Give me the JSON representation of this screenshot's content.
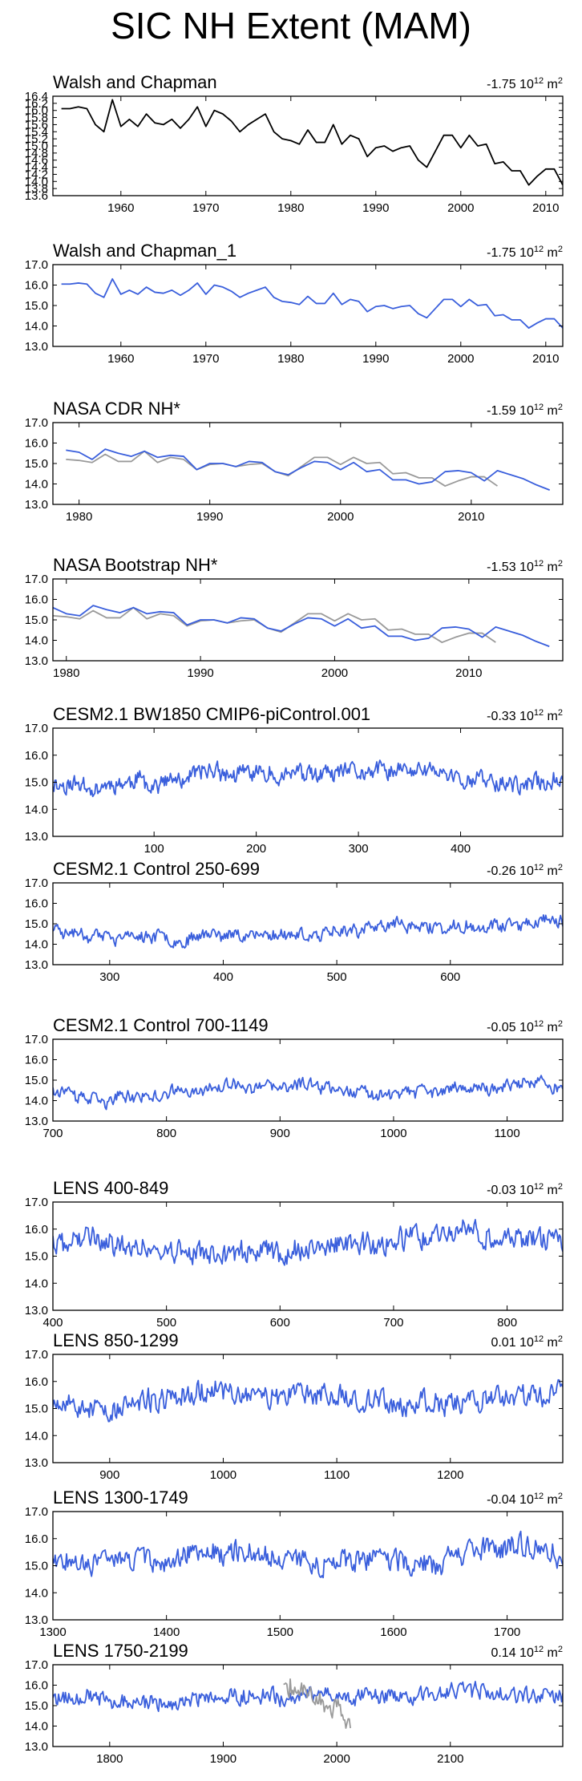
{
  "figure": {
    "title": "SIC NH Extent (MAM)",
    "trend_unit": "10",
    "trend_unit_exp1": "12",
    "trend_unit_exp2": "2",
    "trend_unit_m": "m",
    "colors": {
      "model": "#3a5fdc",
      "obs": "#9a9a9a",
      "frame": "#000000",
      "walsh": "#000000"
    }
  },
  "chart_data": [
    {
      "type": "line",
      "title": "Walsh and Chapman",
      "trend": "-1.75",
      "xlim": [
        1952,
        2012
      ],
      "ylim": [
        13.6,
        16.4
      ],
      "yticks": [
        13.6,
        13.8,
        14.0,
        14.2,
        14.4,
        14.6,
        14.8,
        15.0,
        15.2,
        15.4,
        15.6,
        15.8,
        16.0,
        16.2,
        16.4
      ],
      "ytick_labels": [
        "13.6",
        "13.8",
        "14.0",
        "14.2",
        "14.4",
        "14.6",
        "14.8",
        "15.0",
        "15.2",
        "15.4",
        "15.6",
        "15.8",
        "16.0",
        "16.2",
        "16.4"
      ],
      "xticks": [
        1960,
        1970,
        1980,
        1990,
        2000,
        2010
      ],
      "series": [
        {
          "name": "Walsh and Chapman",
          "style": "walsh",
          "x_start": 1953,
          "x_step": 1,
          "values": [
            16.05,
            16.05,
            16.1,
            16.05,
            15.6,
            15.4,
            16.3,
            15.55,
            15.75,
            15.55,
            15.9,
            15.65,
            15.6,
            15.75,
            15.5,
            15.75,
            16.1,
            15.55,
            16.0,
            15.9,
            15.7,
            15.4,
            15.6,
            15.75,
            15.9,
            15.4,
            15.2,
            15.15,
            15.05,
            15.45,
            15.1,
            15.1,
            15.6,
            15.05,
            15.3,
            15.2,
            14.7,
            14.95,
            15.0,
            14.85,
            14.95,
            15.0,
            14.6,
            14.4,
            14.85,
            15.3,
            15.3,
            14.95,
            15.3,
            15.0,
            15.05,
            14.5,
            14.55,
            14.3,
            14.3,
            13.9,
            14.15,
            14.35,
            14.35,
            13.9
          ]
        }
      ]
    },
    {
      "type": "line",
      "title": "Walsh and Chapman_1",
      "trend": "-1.75",
      "xlim": [
        1952,
        2012
      ],
      "ylim": [
        13.0,
        17.0
      ],
      "yticks": [
        13,
        14,
        15,
        16,
        17
      ],
      "ytick_labels": [
        "13.0",
        "14.0",
        "15.0",
        "16.0",
        "17.0"
      ],
      "xticks": [
        1960,
        1970,
        1980,
        1990,
        2000,
        2010
      ],
      "series": [
        {
          "name": "Walsh and Chapman_1",
          "style": "model",
          "x_start": 1953,
          "x_step": 1,
          "values": [
            16.05,
            16.05,
            16.1,
            16.05,
            15.6,
            15.4,
            16.3,
            15.55,
            15.75,
            15.55,
            15.9,
            15.65,
            15.6,
            15.75,
            15.5,
            15.75,
            16.1,
            15.55,
            16.0,
            15.9,
            15.7,
            15.4,
            15.6,
            15.75,
            15.9,
            15.4,
            15.2,
            15.15,
            15.05,
            15.45,
            15.1,
            15.1,
            15.6,
            15.05,
            15.3,
            15.2,
            14.7,
            14.95,
            15.0,
            14.85,
            14.95,
            15.0,
            14.6,
            14.4,
            14.85,
            15.3,
            15.3,
            14.95,
            15.3,
            15.0,
            15.05,
            14.5,
            14.55,
            14.3,
            14.3,
            13.9,
            14.15,
            14.35,
            14.35,
            13.9
          ]
        }
      ]
    },
    {
      "type": "line",
      "title": "NASA CDR NH*",
      "trend": "-1.59",
      "xlim": [
        1978,
        2017
      ],
      "ylim": [
        13.0,
        17.0
      ],
      "yticks": [
        13,
        14,
        15,
        16,
        17
      ],
      "ytick_labels": [
        "13.0",
        "14.0",
        "15.0",
        "16.0",
        "17.0"
      ],
      "xticks": [
        1980,
        1990,
        2000,
        2010
      ],
      "series": [
        {
          "name": "Walsh and Chapman",
          "style": "obs",
          "x_start": 1979,
          "x_step": 1,
          "values": [
            15.2,
            15.15,
            15.05,
            15.45,
            15.1,
            15.1,
            15.6,
            15.05,
            15.3,
            15.2,
            14.7,
            14.95,
            15.0,
            14.85,
            14.95,
            15.0,
            14.6,
            14.4,
            14.85,
            15.3,
            15.3,
            14.95,
            15.3,
            15.0,
            15.05,
            14.5,
            14.55,
            14.3,
            14.3,
            13.9,
            14.15,
            14.35,
            14.35,
            13.9
          ]
        },
        {
          "name": "NASA CDR NH",
          "style": "model",
          "x_start": 1979,
          "x_step": 1,
          "values": [
            15.65,
            15.55,
            15.2,
            15.7,
            15.5,
            15.35,
            15.6,
            15.3,
            15.4,
            15.35,
            14.7,
            15.0,
            15.0,
            14.85,
            15.1,
            15.05,
            14.6,
            14.45,
            14.8,
            15.1,
            15.05,
            14.7,
            15.05,
            14.6,
            14.7,
            14.2,
            14.2,
            14.0,
            14.1,
            14.6,
            14.65,
            14.55,
            14.15,
            14.65,
            14.45,
            14.25,
            13.95,
            13.7
          ]
        }
      ]
    },
    {
      "type": "line",
      "title": "NASA Bootstrap NH*",
      "trend": "-1.53",
      "xlim": [
        1979,
        2017
      ],
      "ylim": [
        13.0,
        17.0
      ],
      "yticks": [
        13,
        14,
        15,
        16,
        17
      ],
      "ytick_labels": [
        "13.0",
        "14.0",
        "15.0",
        "16.0",
        "17.0"
      ],
      "xticks": [
        1980,
        1990,
        2000,
        2010
      ],
      "series": [
        {
          "name": "Walsh and Chapman",
          "style": "obs",
          "x_start": 1979,
          "x_step": 1,
          "values": [
            15.2,
            15.15,
            15.05,
            15.45,
            15.1,
            15.1,
            15.6,
            15.05,
            15.3,
            15.2,
            14.7,
            14.95,
            15.0,
            14.85,
            14.95,
            15.0,
            14.6,
            14.4,
            14.85,
            15.3,
            15.3,
            14.95,
            15.3,
            15.0,
            15.05,
            14.5,
            14.55,
            14.3,
            14.3,
            13.9,
            14.15,
            14.35,
            14.35,
            13.9
          ]
        },
        {
          "name": "NASA Bootstrap NH",
          "style": "model",
          "x_start": 1979,
          "x_step": 1,
          "values": [
            15.6,
            15.3,
            15.2,
            15.7,
            15.5,
            15.35,
            15.6,
            15.3,
            15.4,
            15.35,
            14.75,
            15.0,
            15.0,
            14.85,
            15.1,
            15.05,
            14.6,
            14.45,
            14.8,
            15.1,
            15.05,
            14.7,
            15.05,
            14.6,
            14.7,
            14.2,
            14.2,
            14.0,
            14.1,
            14.6,
            14.65,
            14.55,
            14.15,
            14.65,
            14.45,
            14.25,
            13.95,
            13.7
          ]
        }
      ]
    },
    {
      "type": "line",
      "title": "CESM2.1 BW1850 CMIP6-piControl.001",
      "trend": "-0.33",
      "xlim": [
        1,
        500
      ],
      "ylim": [
        13.0,
        17.0
      ],
      "yticks": [
        13,
        14,
        15,
        16,
        17
      ],
      "ytick_labels": [
        "13.0",
        "14.0",
        "15.0",
        "16.0",
        "17.0"
      ],
      "xticks": [
        100,
        200,
        300,
        400
      ],
      "series": [
        {
          "name": "CESM2.1 BW1850",
          "style": "model",
          "generated": true,
          "n": 500,
          "mean": 15.0,
          "amp": 0.28,
          "seed": 11
        }
      ]
    },
    {
      "type": "line",
      "title": "CESM2.1 Control 250-699",
      "trend": "-0.26",
      "xlim": [
        250,
        699
      ],
      "ylim": [
        13.0,
        17.0
      ],
      "yticks": [
        13,
        14,
        15,
        16,
        17
      ],
      "ytick_labels": [
        "13.0",
        "14.0",
        "15.0",
        "16.0",
        "17.0"
      ],
      "xticks": [
        300,
        400,
        500,
        600
      ],
      "series": [
        {
          "name": "CESM2.1 Control",
          "style": "model",
          "generated": true,
          "n": 450,
          "mean": 14.75,
          "amp": 0.27,
          "seed": 23
        }
      ]
    },
    {
      "type": "line",
      "title": "CESM2.1 Control 700-1149",
      "trend": "-0.05",
      "xlim": [
        700,
        1149
      ],
      "ylim": [
        13.0,
        17.0
      ],
      "yticks": [
        13,
        14,
        15,
        16,
        17
      ],
      "ytick_labels": [
        "13.0",
        "14.0",
        "15.0",
        "16.0",
        "17.0"
      ],
      "xticks": [
        700,
        800,
        900,
        1000,
        1100
      ],
      "series": [
        {
          "name": "CESM2.1 Control",
          "style": "model",
          "generated": true,
          "n": 450,
          "mean": 14.6,
          "amp": 0.27,
          "seed": 37
        }
      ]
    },
    {
      "type": "line",
      "title": "LENS 400-849",
      "trend": "-0.03",
      "xlim": [
        400,
        849
      ],
      "ylim": [
        13.0,
        17.0
      ],
      "yticks": [
        13,
        14,
        15,
        16,
        17
      ],
      "ytick_labels": [
        "13.0",
        "14.0",
        "15.0",
        "16.0",
        "17.0"
      ],
      "xticks": [
        400,
        500,
        600,
        700,
        800
      ],
      "series": [
        {
          "name": "LENS",
          "style": "model",
          "generated": true,
          "n": 450,
          "mean": 15.4,
          "amp": 0.38,
          "seed": 41
        }
      ]
    },
    {
      "type": "line",
      "title": "LENS 850-1299",
      "trend": "0.01",
      "xlim": [
        850,
        1299
      ],
      "ylim": [
        13.0,
        17.0
      ],
      "yticks": [
        13,
        14,
        15,
        16,
        17
      ],
      "ytick_labels": [
        "13.0",
        "14.0",
        "15.0",
        "16.0",
        "17.0"
      ],
      "xticks": [
        900,
        1000,
        1100,
        1200
      ],
      "series": [
        {
          "name": "LENS",
          "style": "model",
          "generated": true,
          "n": 450,
          "mean": 15.4,
          "amp": 0.38,
          "seed": 53
        }
      ]
    },
    {
      "type": "line",
      "title": "LENS 1300-1749",
      "trend": "-0.04",
      "xlim": [
        1300,
        1749
      ],
      "ylim": [
        13.0,
        17.0
      ],
      "yticks": [
        13,
        14,
        15,
        16,
        17
      ],
      "ytick_labels": [
        "13.0",
        "14.0",
        "15.0",
        "16.0",
        "17.0"
      ],
      "xticks": [
        1300,
        1400,
        1500,
        1600,
        1700
      ],
      "series": [
        {
          "name": "LENS",
          "style": "model",
          "generated": true,
          "n": 450,
          "mean": 15.4,
          "amp": 0.36,
          "seed": 67
        }
      ]
    },
    {
      "type": "line",
      "title": "LENS 1750-2199",
      "trend": "0.14",
      "xlim": [
        1750,
        2199
      ],
      "ylim": [
        13.0,
        17.0
      ],
      "yticks": [
        13,
        14,
        15,
        16,
        17
      ],
      "ytick_labels": [
        "13.0",
        "14.0",
        "15.0",
        "16.0",
        "17.0"
      ],
      "xticks": [
        1800,
        1900,
        2000,
        2100
      ],
      "series": [
        {
          "name": "LENS",
          "style": "model",
          "generated": true,
          "n": 450,
          "mean": 15.45,
          "amp": 0.36,
          "seed": 79
        },
        {
          "name": "Walsh and Chapman",
          "style": "obs",
          "x_start": 1953,
          "x_step": 1,
          "values": [
            16.05,
            16.05,
            16.1,
            16.05,
            15.6,
            15.4,
            16.3,
            15.55,
            15.75,
            15.55,
            15.9,
            15.65,
            15.6,
            15.75,
            15.5,
            15.75,
            16.1,
            15.55,
            16.0,
            15.9,
            15.7,
            15.4,
            15.6,
            15.75,
            15.9,
            15.4,
            15.2,
            15.15,
            15.05,
            15.45,
            15.1,
            15.1,
            15.6,
            15.05,
            15.3,
            15.2,
            14.7,
            14.95,
            15.0,
            14.85,
            14.95,
            15.0,
            14.6,
            14.4,
            14.85,
            15.3,
            15.3,
            14.95,
            15.3,
            15.0,
            15.05,
            14.5,
            14.55,
            14.3,
            14.3,
            13.9,
            14.15,
            14.35,
            14.35,
            13.9
          ]
        }
      ]
    }
  ]
}
